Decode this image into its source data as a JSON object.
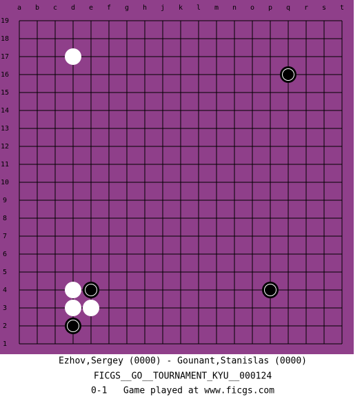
{
  "board": {
    "columns": [
      "a",
      "b",
      "c",
      "d",
      "e",
      "f",
      "g",
      "h",
      "j",
      "k",
      "l",
      "m",
      "n",
      "o",
      "p",
      "q",
      "r",
      "s",
      "t"
    ],
    "rows": [
      19,
      18,
      17,
      16,
      15,
      14,
      13,
      12,
      11,
      10,
      9,
      8,
      7,
      6,
      5,
      4,
      3,
      2,
      1
    ],
    "stones": [
      {
        "color": "white",
        "col": "d",
        "row": 17
      },
      {
        "color": "black",
        "col": "q",
        "row": 16
      },
      {
        "color": "white",
        "col": "d",
        "row": 4
      },
      {
        "color": "black",
        "col": "e",
        "row": 4
      },
      {
        "color": "white",
        "col": "d",
        "row": 3
      },
      {
        "color": "white",
        "col": "e",
        "row": 3
      },
      {
        "color": "black",
        "col": "d",
        "row": 2
      },
      {
        "color": "black",
        "col": "p",
        "row": 4
      }
    ]
  },
  "footer": {
    "players": "Ezhov,Sergey (0000) - Gounant,Stanislas (0000)",
    "tournament": "FICGS__GO__TOURNAMENT_KYU__000124",
    "result": "0-1   Game played at www.ficgs.com"
  }
}
